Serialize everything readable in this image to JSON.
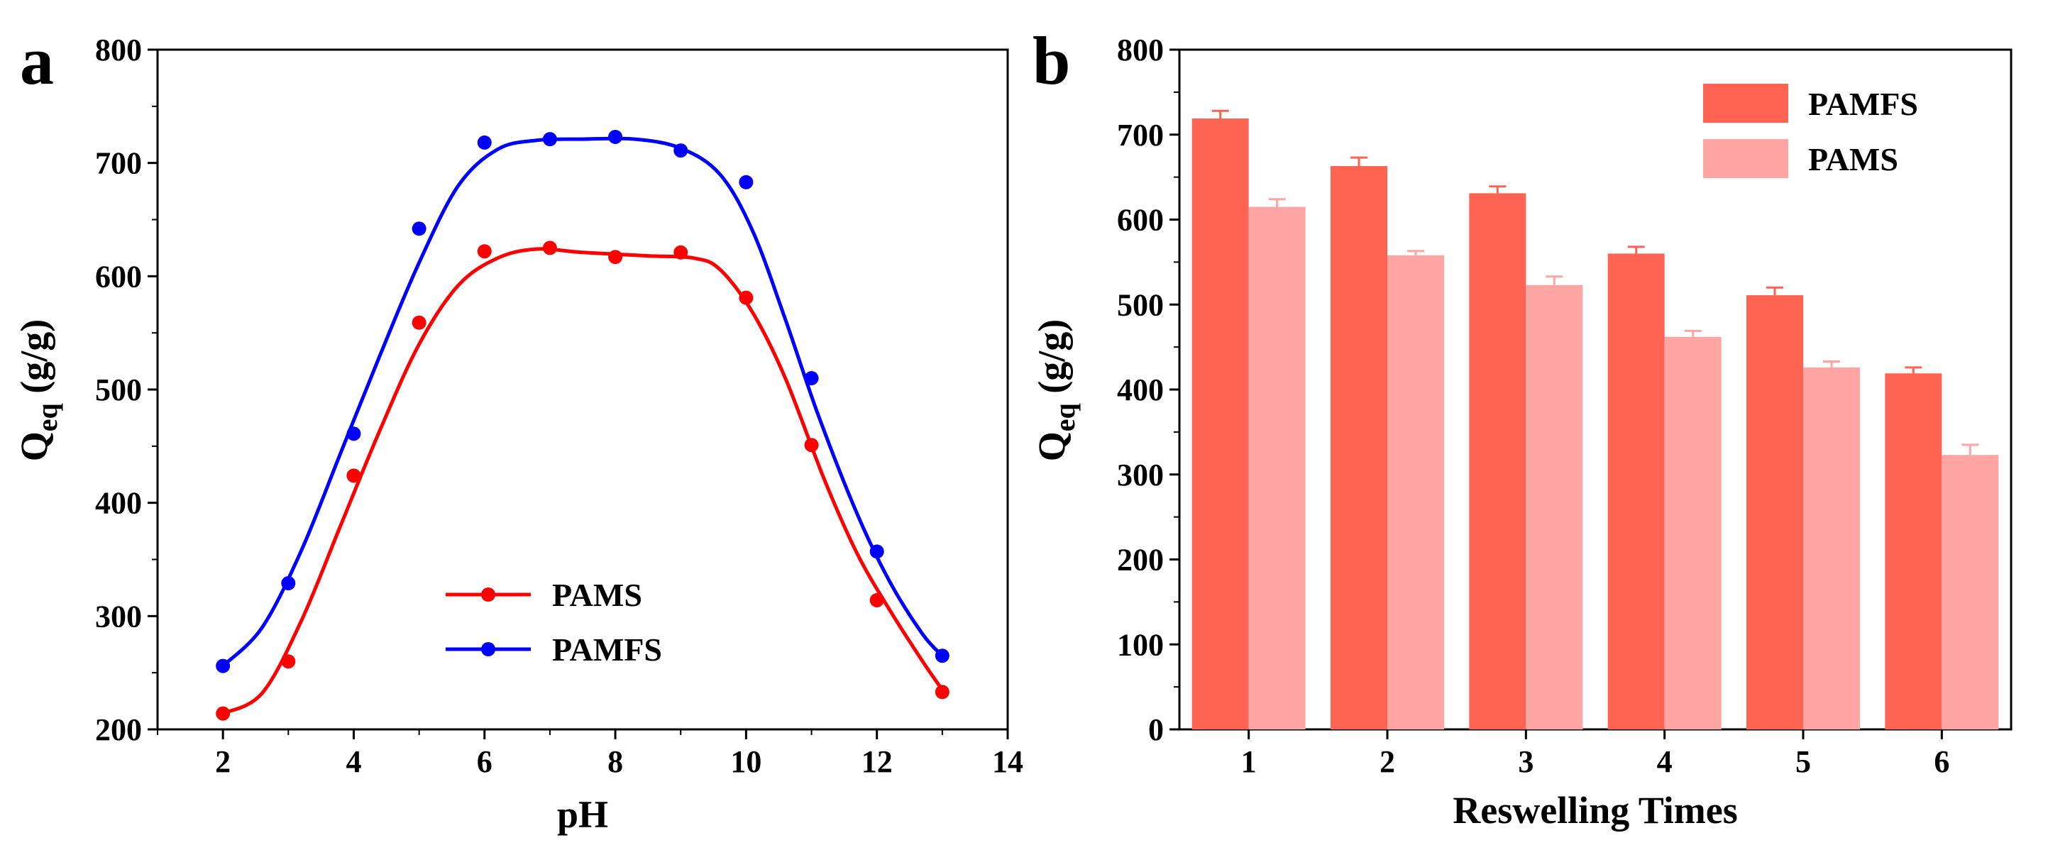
{
  "chart_data": [
    {
      "panel": "a",
      "type": "line",
      "xlabel": "pH",
      "ylabel": "Qeq (g/g)",
      "ylabel_main": "Q",
      "ylabel_sub": "eq",
      "ylabel_unit": " (g/g)",
      "xlim": [
        1,
        14
      ],
      "ylim": [
        200,
        800
      ],
      "xticks": [
        2,
        4,
        6,
        8,
        10,
        12,
        14
      ],
      "yticks": [
        200,
        300,
        400,
        500,
        600,
        700,
        800
      ],
      "legend_position": "bottom-center",
      "series": [
        {
          "name": "PAMS",
          "color": "#ff0000",
          "x": [
            2,
            3,
            4,
            5,
            6,
            7,
            8,
            9,
            10,
            11,
            12,
            13
          ],
          "y": [
            214,
            260,
            424,
            559,
            622,
            625,
            617,
            621,
            581,
            451,
            314,
            233
          ],
          "curve": [
            [
              2,
              214
            ],
            [
              2.6,
              232
            ],
            [
              3.2,
              296
            ],
            [
              3.8,
              380
            ],
            [
              4.4,
              464
            ],
            [
              5.0,
              540
            ],
            [
              5.6,
              592
            ],
            [
              6.2,
              616
            ],
            [
              6.8,
              624
            ],
            [
              7.5,
              621
            ],
            [
              8.5,
              618
            ],
            [
              9.2,
              616
            ],
            [
              9.6,
              606
            ],
            [
              10.1,
              568
            ],
            [
              10.6,
              510
            ],
            [
              11.2,
              420
            ],
            [
              11.7,
              355
            ],
            [
              12.2,
              305
            ],
            [
              12.7,
              260
            ],
            [
              13,
              235
            ]
          ]
        },
        {
          "name": "PAMFS",
          "color": "#0000ff",
          "x": [
            2,
            3,
            4,
            5,
            6,
            7,
            8,
            9,
            10,
            11,
            12,
            13
          ],
          "y": [
            256,
            329,
            461,
            642,
            718,
            721,
            723,
            711,
            683,
            510,
            357,
            265
          ],
          "curve": [
            [
              2,
              256
            ],
            [
              2.6,
              290
            ],
            [
              3.2,
              358
            ],
            [
              3.8,
              444
            ],
            [
              4.4,
              530
            ],
            [
              5.0,
              612
            ],
            [
              5.6,
              680
            ],
            [
              6.2,
              712
            ],
            [
              6.8,
              720
            ],
            [
              7.5,
              721
            ],
            [
              8.3,
              721
            ],
            [
              9.0,
              713
            ],
            [
              9.6,
              690
            ],
            [
              10.1,
              640
            ],
            [
              10.6,
              562
            ],
            [
              11.1,
              478
            ],
            [
              11.7,
              390
            ],
            [
              12.2,
              330
            ],
            [
              12.7,
              284
            ],
            [
              13,
              265
            ]
          ]
        }
      ]
    },
    {
      "panel": "b",
      "type": "bar",
      "xlabel": "Reswelling Times",
      "ylabel": "Qeq (g/g)",
      "ylabel_main": "Q",
      "ylabel_sub": "eq",
      "ylabel_unit": " (g/g)",
      "ylim": [
        0,
        800
      ],
      "yticks": [
        0,
        100,
        200,
        300,
        400,
        500,
        600,
        700,
        800
      ],
      "categories": [
        "1",
        "2",
        "3",
        "4",
        "5",
        "6"
      ],
      "legend_position": "top-right",
      "series": [
        {
          "name": "PAMFS",
          "color": "#ff6352",
          "values": [
            719,
            663,
            631,
            560,
            511,
            419
          ],
          "errors": [
            9,
            10,
            8,
            8,
            9,
            7
          ]
        },
        {
          "name": "PAMS",
          "color": "#ffa5a3",
          "values": [
            615,
            558,
            523,
            462,
            426,
            323
          ],
          "errors": [
            9,
            5,
            10,
            7,
            7,
            12
          ]
        }
      ]
    }
  ]
}
